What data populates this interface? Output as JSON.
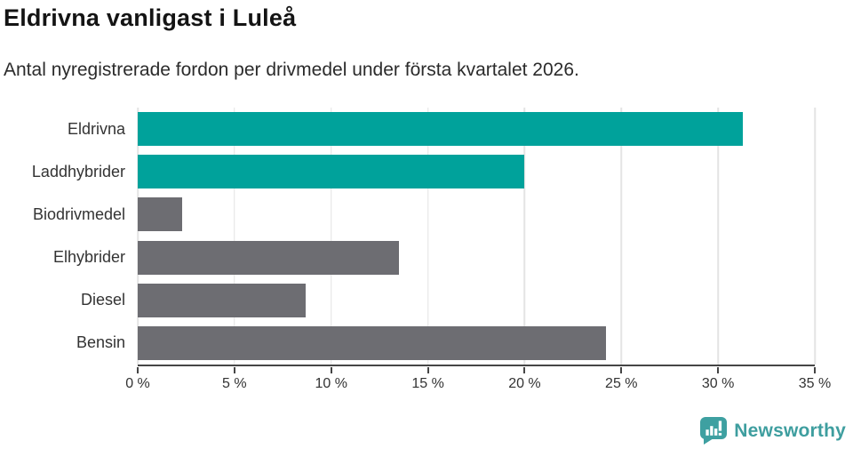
{
  "header": {
    "title": "Eldrivna vanligast i Luleå",
    "subtitle": "Antal nyregistrerade fordon per drivmedel under första kvartalet 2026."
  },
  "chart_data": {
    "type": "bar",
    "orientation": "horizontal",
    "title": "Eldrivna vanligast i Luleå",
    "subtitle": "Antal nyregistrerade fordon per drivmedel under första kvartalet 2026.",
    "categories": [
      "Eldrivna",
      "Laddhybrider",
      "Biodrivmedel",
      "Elhybrider",
      "Diesel",
      "Bensin"
    ],
    "values": [
      31.3,
      20.0,
      2.3,
      13.5,
      8.7,
      24.2
    ],
    "unit": "%",
    "xlim": [
      0,
      35
    ],
    "x_tick_values": [
      0,
      5,
      10,
      15,
      20,
      25,
      30,
      35
    ],
    "x_tick_labels": [
      "0 %",
      "5 %",
      "10 %",
      "15 %",
      "20 %",
      "25 %",
      "30 %",
      "35 %"
    ],
    "grid": "vertical",
    "legend": "none",
    "bar_colors": [
      "#00A29B",
      "#00A29B",
      "#6D6D72",
      "#6D6D72",
      "#6D6D72",
      "#6D6D72"
    ]
  },
  "colors": {
    "highlight_bar": "#00A29B",
    "default_bar": "#6D6D72",
    "axis": "#454545",
    "gridline": "#E4E4E4",
    "brand_teal": "#3E9E9F",
    "title_text": "#141414",
    "body_text": "#333333"
  },
  "footer": {
    "brand_name": "Newsworthy",
    "logo_icon": "newsworthy-bar-chart-speech-bubble-icon"
  }
}
